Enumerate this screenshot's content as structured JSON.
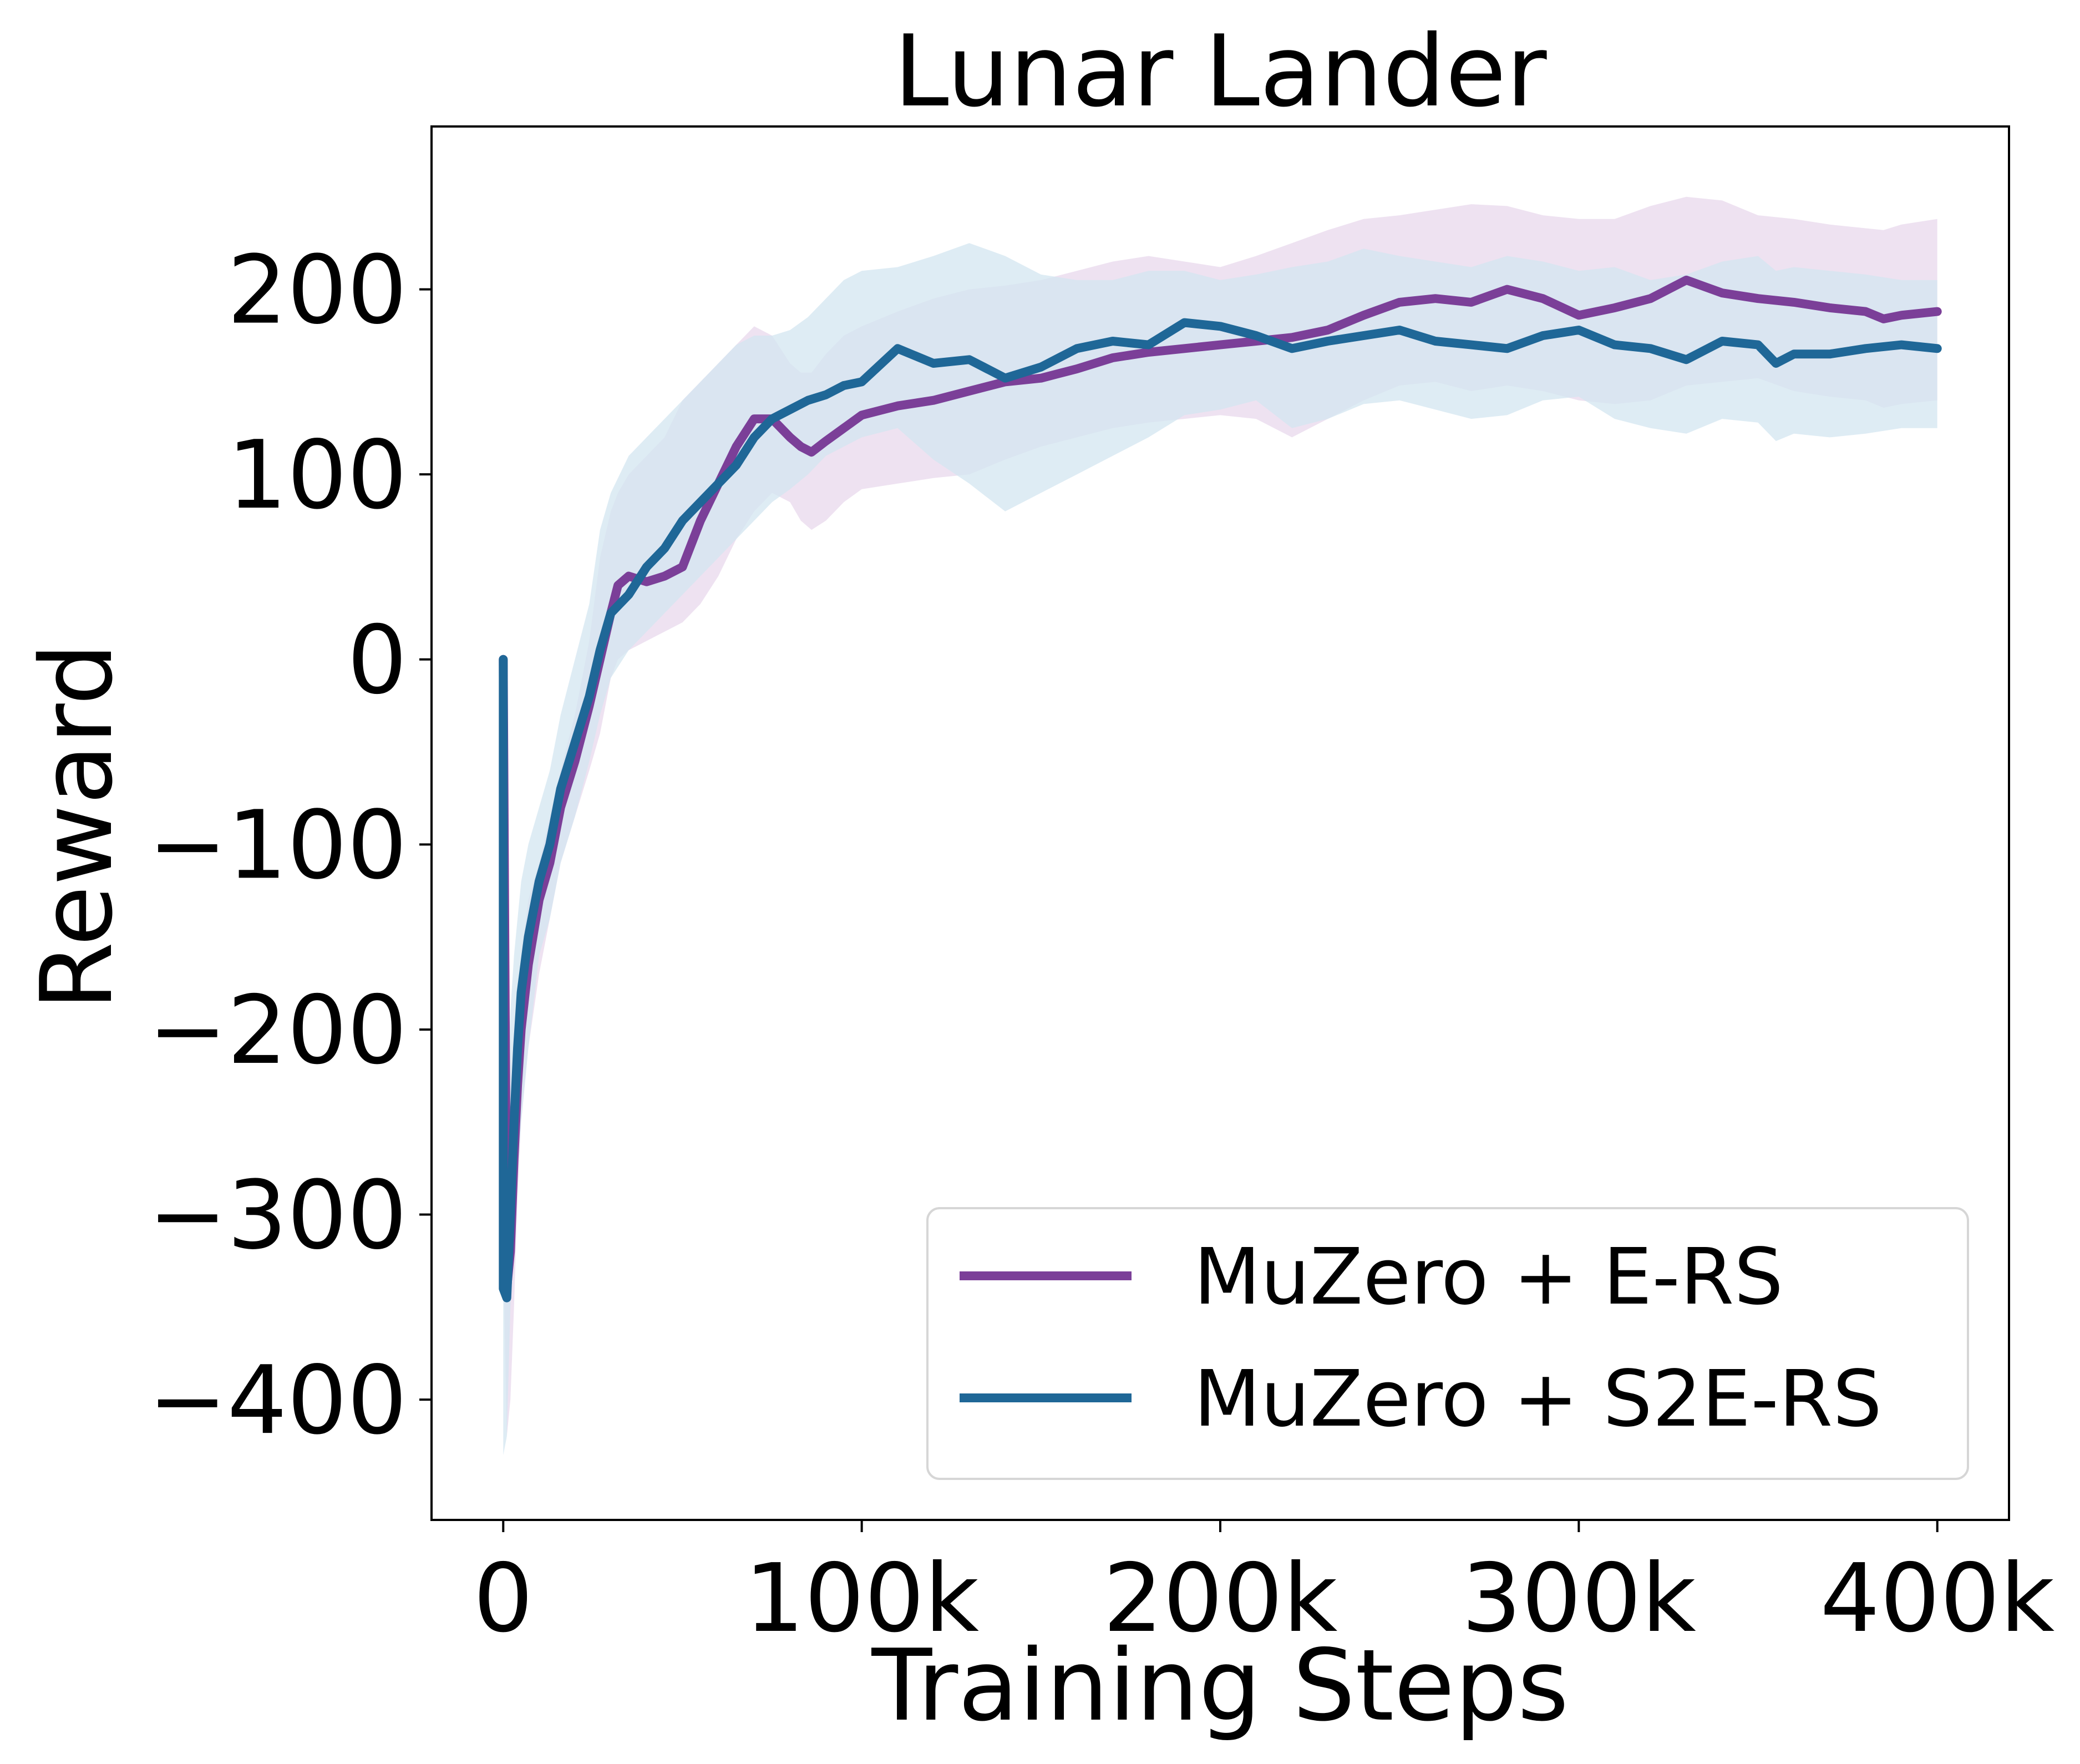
{
  "chart_data": {
    "type": "line",
    "title": "Lunar Lander",
    "xlabel": "Training Steps",
    "ylabel": "Reward",
    "xlim": [
      -20000,
      420000
    ],
    "ylim": [
      -465,
      288
    ],
    "x_ticks": [
      0,
      100000,
      200000,
      300000,
      400000
    ],
    "x_tick_labels": [
      "0",
      "100k",
      "200k",
      "300k",
      "400k"
    ],
    "y_ticks": [
      -400,
      -300,
      -200,
      -100,
      0,
      100,
      200
    ],
    "y_tick_labels": [
      "−400",
      "−300",
      "−200",
      "−100",
      "0",
      "100",
      "200"
    ],
    "grid": false,
    "legend_position": "lower-right",
    "series": [
      {
        "name": "MuZero + E-RS",
        "color": "#7b3f98",
        "band_color": "#e8d8ec",
        "x": [
          0,
          1000,
          2000,
          3000,
          4000,
          5000,
          7000,
          10000,
          13000,
          16000,
          20000,
          24000,
          27000,
          30000,
          32000,
          35000,
          40000,
          45000,
          50000,
          55000,
          60000,
          65000,
          70000,
          75000,
          80000,
          83000,
          86000,
          90000,
          95000,
          100000,
          110000,
          120000,
          130000,
          140000,
          150000,
          160000,
          170000,
          180000,
          190000,
          200000,
          210000,
          220000,
          230000,
          240000,
          250000,
          260000,
          270000,
          280000,
          290000,
          300000,
          310000,
          320000,
          330000,
          340000,
          350000,
          360000,
          370000,
          380000,
          385000,
          390000,
          400000
        ],
        "mean": [
          0,
          -340,
          -320,
          -270,
          -230,
          -200,
          -165,
          -130,
          -110,
          -80,
          -55,
          -25,
          0,
          25,
          40,
          45,
          42,
          45,
          50,
          75,
          95,
          115,
          130,
          130,
          120,
          115,
          112,
          118,
          125,
          132,
          137,
          140,
          145,
          150,
          152,
          157,
          163,
          166,
          168,
          170,
          172,
          174,
          178,
          186,
          193,
          195,
          193,
          200,
          195,
          186,
          190,
          195,
          205,
          198,
          195,
          193,
          190,
          188,
          184,
          186,
          188
        ],
        "upper": [
          -150,
          -250,
          -230,
          -200,
          -180,
          -160,
          -130,
          -110,
          -85,
          -60,
          -30,
          10,
          55,
          80,
          90,
          100,
          110,
          120,
          140,
          150,
          160,
          170,
          180,
          175,
          160,
          155,
          155,
          165,
          175,
          180,
          188,
          195,
          200,
          202,
          205,
          210,
          215,
          218,
          215,
          212,
          218,
          225,
          232,
          238,
          240,
          243,
          246,
          245,
          240,
          238,
          238,
          245,
          250,
          248,
          240,
          238,
          235,
          233,
          232,
          235,
          238
        ],
        "lower": [
          -320,
          -420,
          -400,
          -350,
          -290,
          -250,
          -210,
          -170,
          -140,
          -110,
          -85,
          -60,
          -40,
          -10,
          0,
          5,
          10,
          15,
          20,
          30,
          45,
          65,
          80,
          90,
          85,
          75,
          70,
          75,
          85,
          92,
          95,
          98,
          100,
          108,
          115,
          120,
          125,
          128,
          130,
          132,
          130,
          120,
          130,
          140,
          148,
          150,
          145,
          148,
          145,
          140,
          138,
          140,
          148,
          150,
          152,
          145,
          142,
          140,
          136,
          138,
          140
        ]
      },
      {
        "name": "MuZero + S2E-RS",
        "color": "#1f6797",
        "band_color": "#d3e5f0",
        "x": [
          0,
          0,
          1000,
          2000,
          3000,
          4000,
          5000,
          7000,
          10000,
          13000,
          16000,
          20000,
          24000,
          27000,
          30000,
          35000,
          40000,
          45000,
          50000,
          55000,
          60000,
          65000,
          70000,
          75000,
          80000,
          85000,
          90000,
          95000,
          100000,
          110000,
          120000,
          130000,
          140000,
          150000,
          160000,
          170000,
          180000,
          190000,
          200000,
          210000,
          220000,
          230000,
          240000,
          250000,
          260000,
          270000,
          280000,
          290000,
          300000,
          310000,
          320000,
          330000,
          340000,
          350000,
          355000,
          360000,
          370000,
          380000,
          390000,
          400000
        ],
        "mean": [
          0,
          -340,
          -345,
          -300,
          -250,
          -210,
          -180,
          -150,
          -120,
          -100,
          -70,
          -45,
          -20,
          5,
          25,
          35,
          50,
          60,
          75,
          85,
          95,
          105,
          120,
          130,
          135,
          140,
          143,
          148,
          150,
          168,
          160,
          162,
          152,
          158,
          168,
          172,
          170,
          182,
          180,
          175,
          168,
          172,
          175,
          178,
          172,
          170,
          168,
          175,
          178,
          170,
          168,
          162,
          172,
          170,
          160,
          165,
          165,
          168,
          170,
          168
        ],
        "upper": [
          -150,
          -260,
          -240,
          -190,
          -160,
          -140,
          -120,
          -100,
          -80,
          -60,
          -30,
          0,
          30,
          70,
          90,
          110,
          120,
          130,
          140,
          150,
          160,
          170,
          175,
          175,
          178,
          185,
          195,
          205,
          210,
          212,
          218,
          225,
          218,
          208,
          205,
          205,
          210,
          210,
          205,
          208,
          212,
          215,
          222,
          218,
          215,
          212,
          218,
          215,
          210,
          212,
          205,
          208,
          215,
          218,
          210,
          212,
          210,
          208,
          205,
          205
        ],
        "lower": [
          -330,
          -430,
          -420,
          -350,
          -310,
          -280,
          -250,
          -210,
          -160,
          -140,
          -110,
          -85,
          -55,
          -30,
          -10,
          5,
          15,
          25,
          35,
          45,
          55,
          65,
          75,
          85,
          92,
          100,
          110,
          115,
          120,
          125,
          108,
          95,
          80,
          90,
          100,
          110,
          120,
          132,
          135,
          140,
          125,
          130,
          138,
          140,
          135,
          130,
          132,
          140,
          142,
          130,
          125,
          122,
          130,
          128,
          118,
          122,
          120,
          122,
          125,
          125
        ]
      }
    ]
  }
}
